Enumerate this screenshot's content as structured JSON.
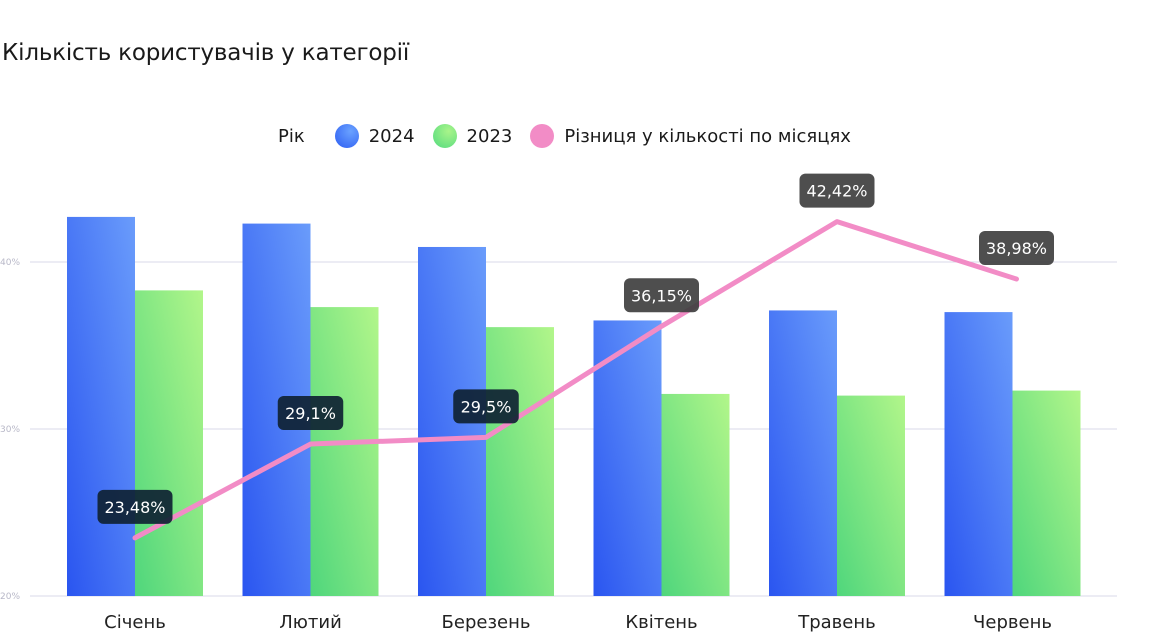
{
  "chart_data": {
    "type": "bar",
    "title": "Кількість користувачів у категорії",
    "legend_prefix": "Рік",
    "categories": [
      "Січень",
      "Лютий",
      "Березень",
      "Квітень",
      "Травень",
      "Червень"
    ],
    "series": [
      {
        "name": "2024",
        "type": "bar",
        "values": [
          42.7,
          42.3,
          40.9,
          36.5,
          37.1,
          37.0
        ],
        "color": "#4a7cf6"
      },
      {
        "name": "2023",
        "type": "bar",
        "values": [
          38.3,
          37.3,
          36.1,
          32.1,
          32.0,
          32.3
        ],
        "color": "#74e67c"
      },
      {
        "name": "Різниця у кількості по місяцях",
        "type": "line",
        "values": [
          23.48,
          29.1,
          29.5,
          36.15,
          42.42,
          38.98
        ],
        "labels": [
          "23,48%",
          "29,1%",
          "29,5%",
          "36,15%",
          "42,42%",
          "38,98%"
        ],
        "color": "#f28cc6"
      }
    ],
    "yticks": [
      "20%",
      "30%",
      "40%"
    ],
    "ylim": [
      20,
      45
    ],
    "grid": true,
    "legend_placement": "top-center"
  }
}
